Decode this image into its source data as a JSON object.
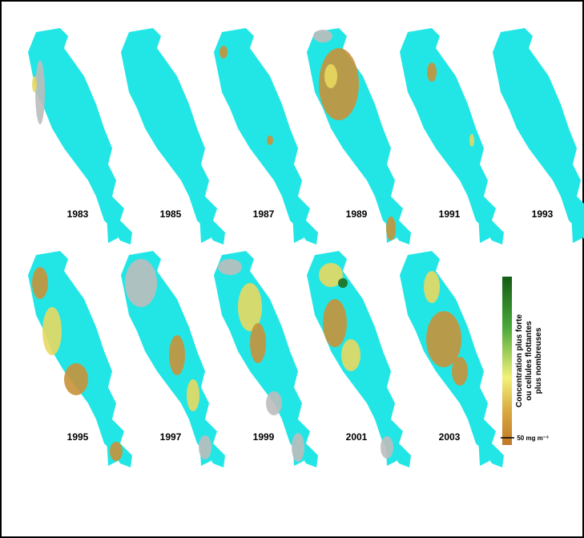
{
  "maps": [
    {
      "year": "1983"
    },
    {
      "year": "1985"
    },
    {
      "year": "1987"
    },
    {
      "year": "1989"
    },
    {
      "year": "1991"
    },
    {
      "year": "1993"
    },
    {
      "year": "1995"
    },
    {
      "year": "1997"
    },
    {
      "year": "1999"
    },
    {
      "year": "2001"
    },
    {
      "year": "2003"
    }
  ],
  "legend": {
    "lines": [
      "Concentration plus forte",
      "ou cellules flottantes",
      "plus nombreuses"
    ],
    "min_label": "50 mg m⁻³"
  }
}
